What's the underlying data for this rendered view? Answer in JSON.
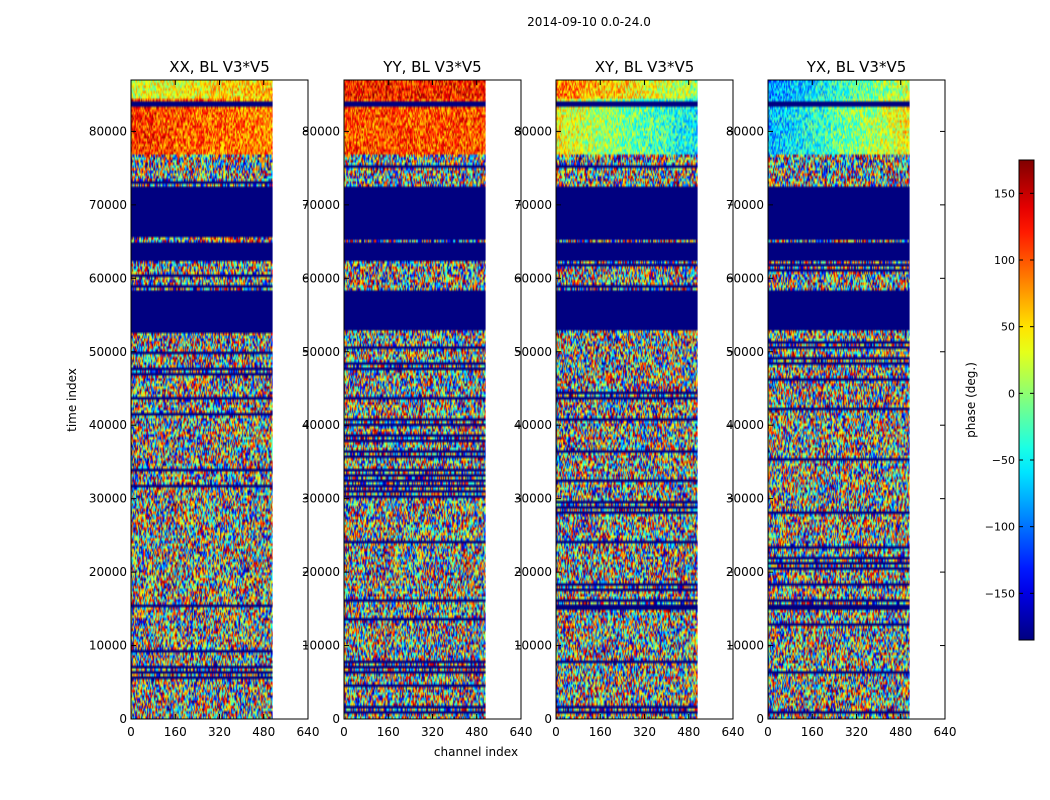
{
  "chart_data": {
    "type": "heatmap",
    "suptitle": "2014-09-10 0.0-24.0",
    "panels": [
      {
        "id": "xx",
        "title": "XX, BL V3*V5",
        "pattern": "xx"
      },
      {
        "id": "yy",
        "title": "YY, BL V3*V5",
        "pattern": "yy"
      },
      {
        "id": "xy",
        "title": "XY, BL V3*V5",
        "pattern": "xy"
      },
      {
        "id": "yx",
        "title": "YX, BL V3*V5",
        "pattern": "yx"
      }
    ],
    "xlabel": "channel index",
    "ylabel": "time index",
    "xlim": [
      0,
      640
    ],
    "ylim": [
      0,
      87000
    ],
    "xticks": [
      0,
      160,
      320,
      480,
      640
    ],
    "yticks": [
      0,
      10000,
      20000,
      30000,
      40000,
      50000,
      60000,
      70000,
      80000
    ],
    "data_channels": 512,
    "colorbar": {
      "label": "phase (deg.)",
      "colormap": "jet",
      "vmin": -185,
      "vmax": 175,
      "ticks": [
        150,
        100,
        50,
        0,
        -50,
        -100,
        -150
      ],
      "tick_labels": [
        "150",
        "100",
        "50",
        "0",
        "−50",
        "−100",
        "−150"
      ]
    },
    "flagged_time_ranges": [
      [
        53000,
        58500
      ],
      [
        62500,
        65000
      ],
      [
        65500,
        72500
      ]
    ],
    "bright_time_range": [
      77000,
      87000
    ]
  }
}
